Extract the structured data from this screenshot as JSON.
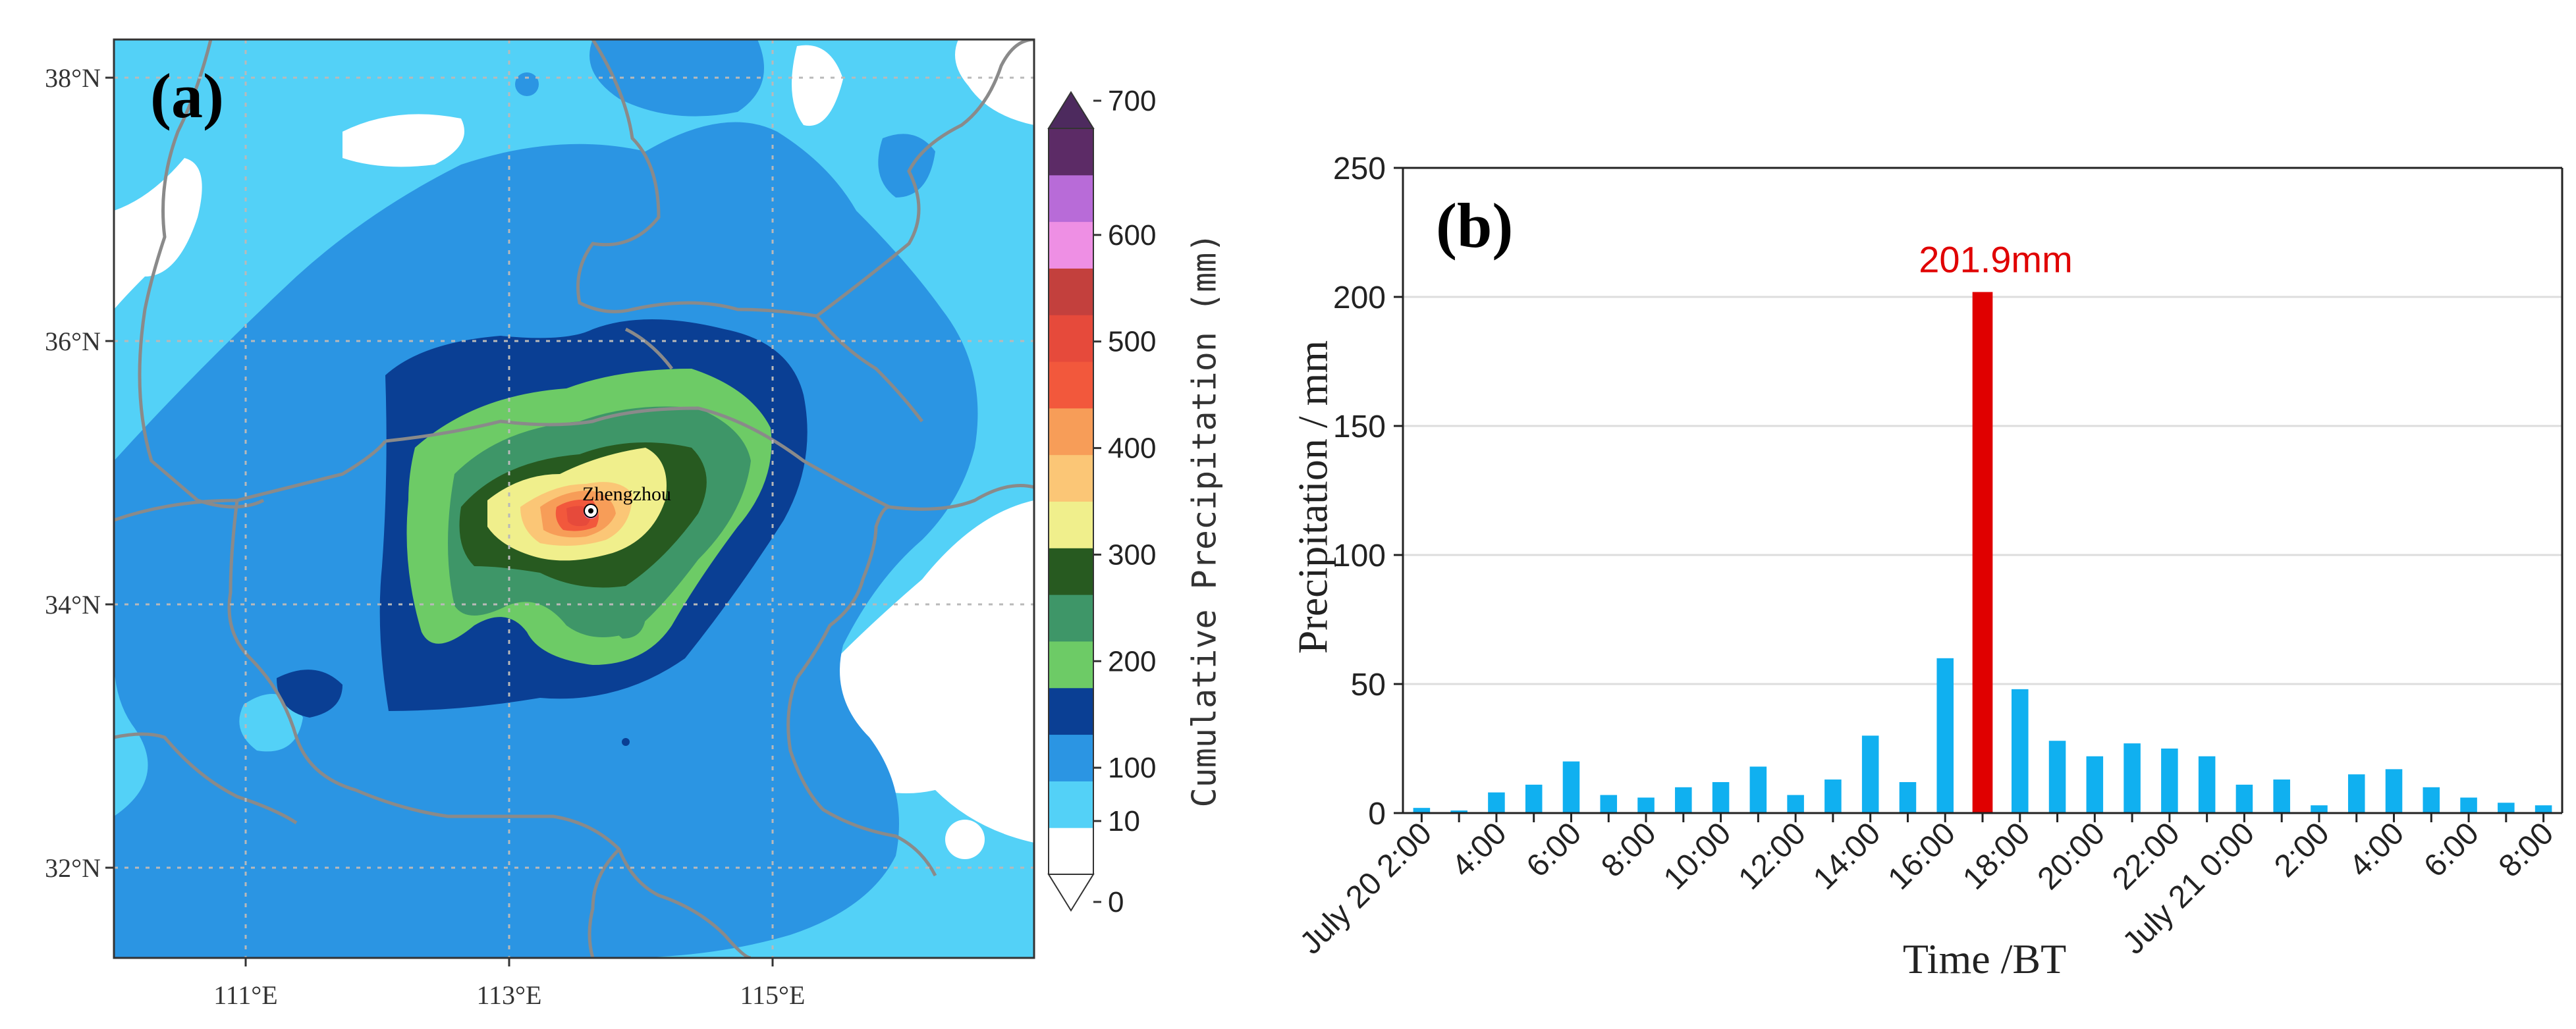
{
  "panel_a": {
    "label": "(a)",
    "city": "Zhengzhou",
    "lat_ticks": [
      "38°N",
      "36°N",
      "34°N",
      "32°N"
    ],
    "lon_ticks": [
      "111°E",
      "113°E",
      "115°E"
    ],
    "colorbar": {
      "label": "Cumulative Precipitation (mm)",
      "levels": [
        0,
        10,
        100,
        200,
        300,
        400,
        500,
        600,
        700
      ],
      "colors": [
        "#ffffff",
        "#53d1f7",
        "#2b95e3",
        "#0a3f94",
        "#6dcb66",
        "#3e9668",
        "#275a20",
        "#f0ef8c",
        "#fbc676",
        "#f79d58",
        "#f2583c",
        "#e64a3b",
        "#c3403d",
        "#ee8fe4",
        "#b86bd8",
        "#5c2b66"
      ]
    },
    "colors": {
      "white": "#ffffff",
      "light": "#53d1f7",
      "mid": "#2b95e3",
      "dark": "#0a3f94",
      "lgreen": "#6dcb66",
      "mgreen": "#3e9668",
      "dgreen": "#275a20",
      "yellow": "#f0ef8c",
      "orange1": "#fbc676",
      "orange2": "#f79d58",
      "red1": "#f2583c",
      "red2": "#e64a3b",
      "pink": "#ee8fe4",
      "border": "#8a8a8a"
    }
  },
  "chart_data": {
    "type": "bar",
    "title": "(b)",
    "xlabel": "Time /BT",
    "ylabel": "Precipitation / mm",
    "ylim": [
      0,
      250
    ],
    "yticks": [
      0,
      50,
      100,
      150,
      200,
      250
    ],
    "xtick_labels": [
      "July 20 2:00",
      "4:00",
      "6:00",
      "8:00",
      "10:00",
      "12:00",
      "14:00",
      "16:00",
      "18:00",
      "20:00",
      "22:00",
      "July 21 0:00",
      "2:00",
      "4:00",
      "6:00",
      "8:00"
    ],
    "categories": [
      "July 20 2:00",
      "3:00",
      "4:00",
      "5:00",
      "6:00",
      "7:00",
      "8:00",
      "9:00",
      "10:00",
      "11:00",
      "12:00",
      "13:00",
      "14:00",
      "15:00",
      "16:00",
      "17:00",
      "18:00",
      "19:00",
      "20:00",
      "21:00",
      "22:00",
      "23:00",
      "July 21 0:00",
      "1:00",
      "2:00",
      "3:00",
      "4:00",
      "5:00",
      "6:00",
      "7:00",
      "8:00"
    ],
    "values": [
      2,
      1,
      8,
      11,
      20,
      7,
      6,
      10,
      12,
      18,
      7,
      13,
      30,
      12,
      60,
      201.9,
      48,
      28,
      22,
      27,
      25,
      22,
      11,
      13,
      3,
      15,
      17,
      10,
      6,
      4,
      3
    ],
    "highlight_index": 15,
    "annotation": "201.9mm",
    "bar_color": "#10b0f0",
    "highlight_color": "#e00000",
    "annotation_color": "#e00000",
    "grid": true
  }
}
